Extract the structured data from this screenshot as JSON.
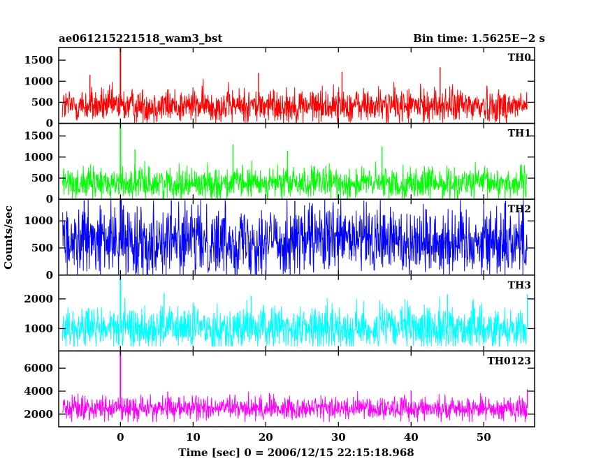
{
  "header": {
    "title_left": "ae061215221518_wam3_bst",
    "title_right": "Bin time: 1.5625E−2 s"
  },
  "axes": {
    "xlabel": "Time [sec] 0 = 2006/12/15 22:15:18.968",
    "ylabel": "Counts/sec"
  },
  "chart_data": {
    "type": "line",
    "x_range": [
      -8,
      56
    ],
    "xlim": [
      -8.5,
      57
    ],
    "x_ticks": [
      0,
      10,
      20,
      30,
      40,
      50
    ],
    "x_tick_labels": [
      "0",
      "10",
      "20",
      "30",
      "40",
      "50"
    ],
    "bin_time_s": 0.015625,
    "grid": false,
    "panels": [
      {
        "label": "TH0",
        "color": "#ff0000",
        "ylim": [
          0,
          1800
        ],
        "yticks": [
          0,
          500,
          1000,
          1500
        ],
        "mean": 420,
        "noise_sd": 210,
        "floor": 0,
        "spike_x": 0,
        "spike_y": 1800,
        "peaks": [
          {
            "x": -4.2,
            "y": 1150
          },
          {
            "x": 44,
            "y": 1330
          },
          {
            "x": 19,
            "y": 1200
          },
          {
            "x": 30.5,
            "y": 1220
          }
        ]
      },
      {
        "label": "TH1",
        "color": "#00ff00",
        "ylim": [
          0,
          1800
        ],
        "yticks": [
          0,
          500,
          1000,
          1500
        ],
        "mean": 380,
        "noise_sd": 190,
        "floor": 0,
        "spike_x": 0,
        "spike_y": 1790,
        "peaks": [
          {
            "x": 15.5,
            "y": 1300
          },
          {
            "x": 36,
            "y": 1250
          },
          {
            "x": 23,
            "y": 1150
          },
          {
            "x": 2,
            "y": 1180
          }
        ]
      },
      {
        "label": "TH2",
        "color": "#0000ff",
        "ylim": [
          0,
          1400
        ],
        "yticks": [
          0,
          500,
          1000
        ],
        "mean": 640,
        "noise_sd": 330,
        "floor": 0,
        "spike_x": 0,
        "spike_y": 1380,
        "peaks": [
          {
            "x": -5,
            "y": 1380
          },
          {
            "x": 7,
            "y": 1380
          },
          {
            "x": 24,
            "y": 1370
          },
          {
            "x": 53,
            "y": 1370
          }
        ]
      },
      {
        "label": "TH3",
        "color": "#00ffff",
        "ylim": [
          250,
          2800
        ],
        "yticks": [
          1000,
          2000
        ],
        "mean": 1020,
        "noise_sd": 370,
        "floor": 400,
        "spike_x": 0,
        "spike_y": 2780,
        "peaks": [
          {
            "x": 6,
            "y": 2200
          },
          {
            "x": 45,
            "y": 2150
          },
          {
            "x": 56,
            "y": 2150
          },
          {
            "x": 18,
            "y": 2100
          }
        ]
      },
      {
        "label": "TH0123",
        "color": "#ff00ff",
        "ylim": [
          900,
          7500
        ],
        "yticks": [
          2000,
          4000,
          6000
        ],
        "mean": 2520,
        "noise_sd": 520,
        "floor": 1300,
        "spike_x": 0,
        "spike_y": 7450,
        "peaks": [
          {
            "x": 56,
            "y": 4150
          },
          {
            "x": 40,
            "y": 4050
          },
          {
            "x": 6.5,
            "y": 3950
          },
          {
            "x": 20.5,
            "y": 3850
          }
        ]
      }
    ]
  }
}
